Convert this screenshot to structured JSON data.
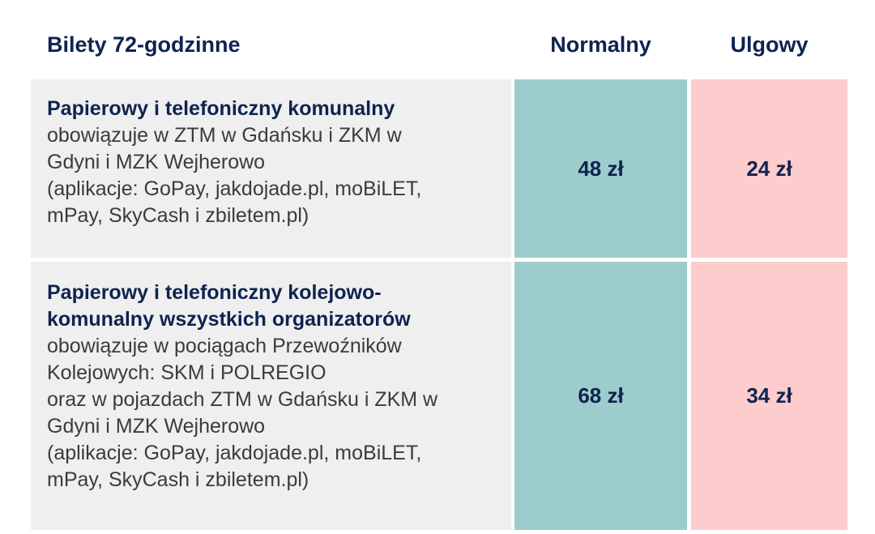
{
  "header": {
    "title": "Bilety 72-godzinne",
    "col_normal": "Normalny",
    "col_reduced": "Ulgowy"
  },
  "rows": [
    {
      "title_lines": [
        "Papierowy i telefoniczny komunalny"
      ],
      "desc_lines": [
        "obowiązuje w ZTM w Gdańsku i ZKM w",
        "Gdyni i MZK Wejherowo",
        "(aplikacje: GoPay, jakdojade.pl, moBiLET,",
        "mPay, SkyCash i zbiletem.pl)"
      ],
      "price_normal": "48 zł",
      "price_reduced": "24 zł"
    },
    {
      "title_lines": [
        "Papierowy i telefoniczny kolejowo-",
        "komunalny wszystkich organizatorów"
      ],
      "desc_lines": [
        "obowiązuje w pociągach Przewoźników",
        "Kolejowych: SKM i POLREGIO",
        "oraz w pojazdach ZTM w Gdańsku i ZKM w",
        "Gdyni i MZK Wejherowo",
        "(aplikacje: GoPay, jakdojade.pl, moBiLET,",
        "mPay, SkyCash i zbiletem.pl)"
      ],
      "price_normal": "68 zł",
      "price_reduced": "34 zł"
    }
  ],
  "colors": {
    "heading": "#0f2350",
    "desc_bg": "#efefef",
    "normal_bg": "#9dcccc",
    "reduced_bg": "#fdcccc"
  }
}
